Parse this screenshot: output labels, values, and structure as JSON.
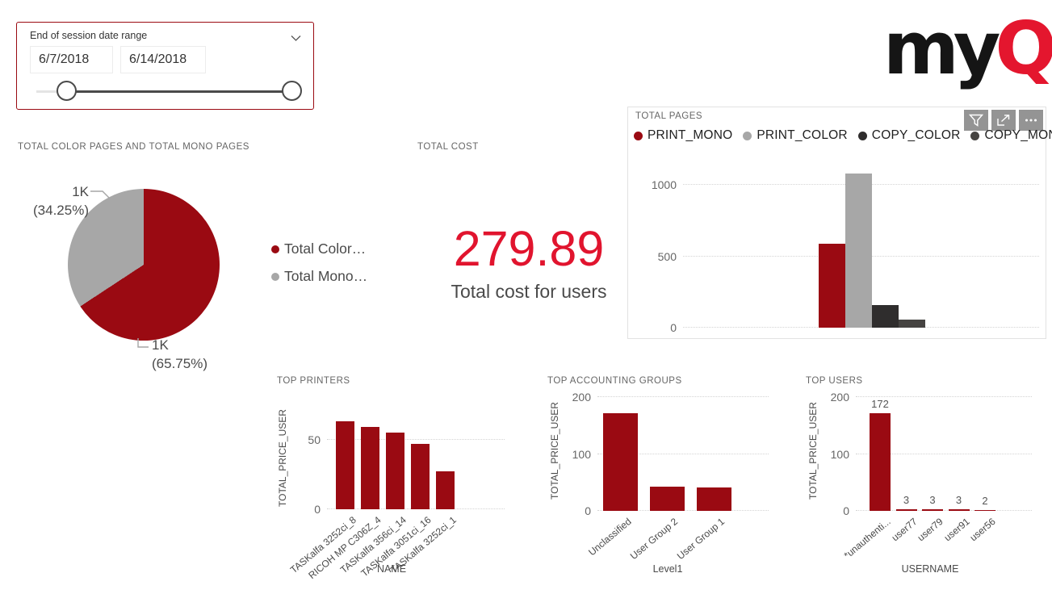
{
  "slicer": {
    "title": "End of session date range",
    "start_date": "6/7/2018",
    "end_date": "6/14/2018"
  },
  "logo": {
    "black": "my",
    "red": "Q"
  },
  "visual_toolbar": {
    "icons": [
      "filter",
      "focus-mode",
      "more-options"
    ]
  },
  "colors": {
    "brand_dark_red": "#9A0A12",
    "accent_red": "#E1142E",
    "gray": "#A7A7A7",
    "copy_color_dark": "#2F2D2D",
    "copy_mono_dark": "#454341",
    "slicer_border": "#9A0A12"
  },
  "chart_data": [
    {
      "name": "total-color-mono-pages",
      "type": "pie",
      "title": "TOTAL COLOR PAGES AND TOTAL MONO PAGES",
      "slices": [
        {
          "label": "Total Color…",
          "value_label": "1K",
          "pct_label": "(65.75%)",
          "pct": 65.75,
          "color": "#9A0A12"
        },
        {
          "label": "Total Mono…",
          "value_label": "1K",
          "pct_label": "(34.25%)",
          "pct": 34.25,
          "color": "#A7A7A7"
        }
      ],
      "legend": [
        {
          "label": "Total Color…",
          "color": "#9A0A12"
        },
        {
          "label": "Total Mono…",
          "color": "#A7A7A7"
        }
      ],
      "legend_position": "right"
    },
    {
      "name": "total-cost",
      "type": "card",
      "title": "TOTAL COST",
      "value": "279.89",
      "label": "Total cost for users"
    },
    {
      "name": "total-pages",
      "type": "bar",
      "title": "TOTAL PAGES",
      "categories": [
        "PRINT_MONO",
        "PRINT_COLOR",
        "COPY_COLOR",
        "COPY_MONO"
      ],
      "values": [
        590,
        1080,
        160,
        57
      ],
      "colors": [
        "#9A0A12",
        "#A7A7A7",
        "#2F2D2D",
        "#454341"
      ],
      "ylim": [
        0,
        1150
      ],
      "yticks": [
        0,
        500,
        1000
      ],
      "grid": "dotted",
      "legend_position": "top",
      "x_axis_labels_hidden": true
    },
    {
      "name": "top-printers",
      "type": "bar",
      "title": "TOP PRINTERS",
      "xlabel": "NAME",
      "ylabel": "TOTAL_PRICE_USER",
      "categories": [
        "TASKalfa 3252ci_8",
        "RICOH MP C306Z_4",
        "TASKalfa 356ci_14",
        "TASKalfa 3051ci_16",
        "TASKalfa 3252ci_1"
      ],
      "values": [
        63,
        59,
        55,
        47,
        27
      ],
      "color": "#9A0A12",
      "ylim": [
        0,
        73
      ],
      "yticks": [
        0,
        50
      ],
      "grid": "dotted",
      "rotated_labels": true
    },
    {
      "name": "top-accounting-groups",
      "type": "bar",
      "title": "TOP ACCOUNTING GROUPS",
      "xlabel": "Level1",
      "ylabel": "TOTAL_PRICE_USER",
      "categories": [
        "Unclassified",
        "User Group 2",
        "User Group 1"
      ],
      "values": [
        172,
        42,
        41
      ],
      "color": "#9A0A12",
      "ylim": [
        0,
        210
      ],
      "yticks": [
        0,
        100,
        200
      ],
      "grid": "dotted",
      "rotated_labels": true
    },
    {
      "name": "top-users",
      "type": "bar",
      "title": "TOP USERS",
      "xlabel": "USERNAME",
      "ylabel": "TOTAL_PRICE_USER",
      "categories": [
        "*unauthenti...",
        "user77",
        "user79",
        "user91",
        "user56"
      ],
      "values": [
        172,
        3,
        3,
        3,
        2
      ],
      "color": "#9A0A12",
      "ylim": [
        0,
        210
      ],
      "yticks": [
        0,
        100,
        200
      ],
      "grid": "dotted",
      "rotated_labels": true,
      "show_values": true
    }
  ]
}
